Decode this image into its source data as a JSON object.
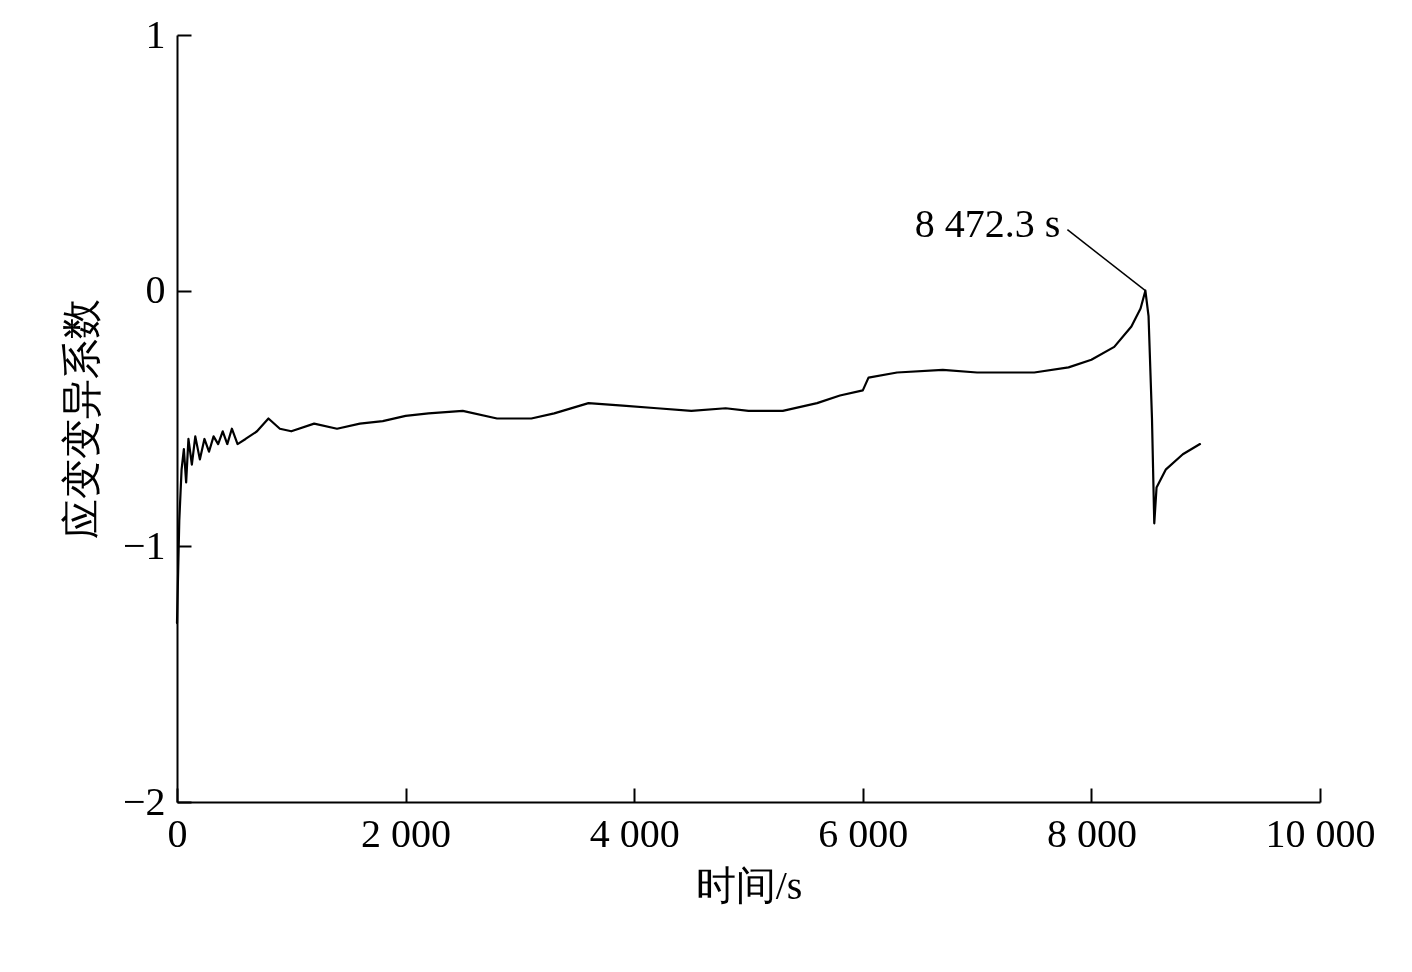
{
  "chart_data": {
    "type": "line",
    "xlabel": "时间/s",
    "ylabel": "应变变异系数",
    "xlim": [
      0,
      10000
    ],
    "ylim": [
      -2,
      1
    ],
    "xticks": [
      0,
      {
        "value": 2000,
        "label": "2 000"
      },
      {
        "value": 4000,
        "label": "4 000"
      },
      {
        "value": 6000,
        "label": "6 000"
      },
      {
        "value": 8000,
        "label": "8 000"
      },
      {
        "value": 10000,
        "label": "10 000"
      }
    ],
    "yticks": [
      -2,
      -1,
      0,
      1
    ],
    "grid": false,
    "marker": "none",
    "line_style": "solid",
    "annotations": [
      {
        "text": "8 472.3 s",
        "x": 8472.3,
        "y": 0
      }
    ],
    "series": [
      {
        "color": "#000000",
        "x": [
          0,
          20,
          40,
          60,
          80,
          100,
          130,
          160,
          200,
          240,
          280,
          320,
          360,
          400,
          440,
          480,
          530,
          600,
          700,
          800,
          900,
          1000,
          1200,
          1400,
          1600,
          1800,
          2000,
          2200,
          2500,
          2800,
          3100,
          3300,
          3600,
          3900,
          4200,
          4500,
          4800,
          5000,
          5300,
          5600,
          5800,
          6000,
          6050,
          6300,
          6700,
          7000,
          7500,
          7800,
          8000,
          8200,
          8350,
          8430,
          8472.3,
          8500,
          8530,
          8550,
          8570,
          8650,
          8800,
          8950
        ],
        "values": [
          -1.3,
          -0.9,
          -0.7,
          -0.62,
          -0.75,
          -0.58,
          -0.68,
          -0.57,
          -0.66,
          -0.58,
          -0.63,
          -0.57,
          -0.6,
          -0.55,
          -0.6,
          -0.54,
          -0.6,
          -0.58,
          -0.55,
          -0.5,
          -0.54,
          -0.55,
          -0.52,
          -0.54,
          -0.52,
          -0.51,
          -0.49,
          -0.48,
          -0.47,
          -0.5,
          -0.5,
          -0.48,
          -0.44,
          -0.45,
          -0.46,
          -0.47,
          -0.46,
          -0.47,
          -0.47,
          -0.44,
          -0.41,
          -0.39,
          -0.34,
          -0.32,
          -0.31,
          -0.32,
          -0.32,
          -0.3,
          -0.27,
          -0.22,
          -0.14,
          -0.07,
          0,
          -0.1,
          -0.5,
          -0.91,
          -0.77,
          -0.7,
          -0.64,
          -0.6
        ]
      }
    ]
  }
}
